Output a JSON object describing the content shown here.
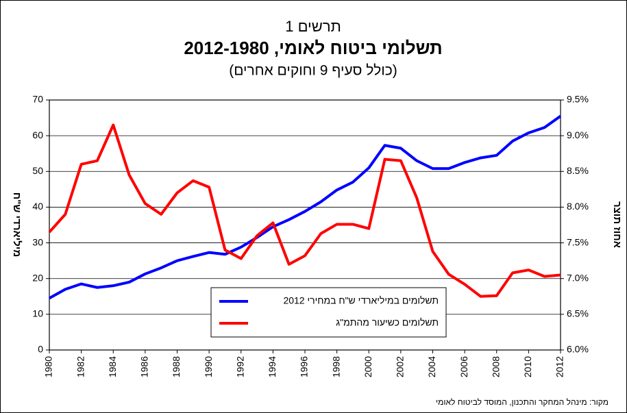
{
  "chart_data": {
    "type": "line",
    "title_top": "תרשים 1",
    "title": "תשלומי ביטוח לאומי, 2012-1980",
    "subtitle": "(כולל סעיף 9 וחוקים אחרים)",
    "ylabel": "מיליארדי ש\"ח",
    "y2label": "אחוז תוצר",
    "source": "מקור: מינהל המחקר והתכנון, המוסד לביטוח לאומי",
    "x": [
      1980,
      1981,
      1982,
      1983,
      1984,
      1985,
      1986,
      1987,
      1988,
      1989,
      1990,
      1991,
      1992,
      1993,
      1994,
      1995,
      1996,
      1997,
      1998,
      1999,
      2000,
      2001,
      2002,
      2003,
      2004,
      2005,
      2006,
      2007,
      2008,
      2009,
      2010,
      2011,
      2012
    ],
    "xlim": [
      1980,
      2012
    ],
    "xticks": [
      1980,
      1982,
      1984,
      1986,
      1988,
      1990,
      1992,
      1994,
      1996,
      1998,
      2000,
      2002,
      2004,
      2006,
      2008,
      2010,
      2012
    ],
    "ylim": [
      0,
      70
    ],
    "yticks": [
      0,
      10,
      20,
      30,
      40,
      50,
      60,
      70
    ],
    "y2lim": [
      6.0,
      9.5
    ],
    "y2ticks": [
      {
        "value": 6.0,
        "label": "6.0%"
      },
      {
        "value": 6.5,
        "label": "6.5%"
      },
      {
        "value": 7.0,
        "label": "7.0%"
      },
      {
        "value": 7.5,
        "label": "7.5%"
      },
      {
        "value": 8.0,
        "label": "8.0%"
      },
      {
        "value": 8.5,
        "label": "8.5%"
      },
      {
        "value": 9.0,
        "label": "9.0%"
      },
      {
        "value": 9.5,
        "label": "9.5%"
      }
    ],
    "grid": true,
    "series": [
      {
        "name": "תשלומים במיליארדי ש\"ח במחירי 2012",
        "color": "#0000ff",
        "values": [
          14.5,
          17,
          18.5,
          17.5,
          18,
          19,
          21.3,
          23,
          25,
          26.2,
          27.3,
          26.8,
          28.8,
          31.5,
          34.5,
          36.5,
          38.8,
          41.5,
          44.8,
          47,
          51,
          57.3,
          56.5,
          53,
          50.8,
          50.8,
          52.5,
          53.8,
          54.5,
          58.5,
          60.8,
          62.3,
          65.5
        ]
      },
      {
        "name": "תשלומים כשיעור מהתמ\"ג",
        "color": "#ff0000",
        "axis": "y2",
        "values": [
          7.65,
          7.9,
          8.6,
          8.65,
          9.15,
          8.45,
          8.05,
          7.9,
          8.2,
          8.37,
          8.28,
          7.4,
          7.28,
          7.6,
          7.78,
          7.2,
          7.32,
          7.63,
          7.76,
          7.76,
          7.7,
          8.67,
          8.65,
          8.13,
          7.38,
          7.06,
          6.92,
          6.75,
          6.76,
          7.08,
          7.12,
          7.03,
          7.05
        ]
      }
    ]
  }
}
